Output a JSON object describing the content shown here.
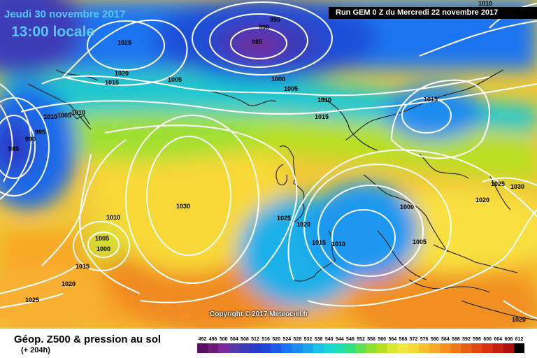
{
  "header": {
    "date_line": "Jeudi 30 novembre 2017",
    "time_line": "13:00 locale",
    "run_line": "Run GEM 0 Z du Mercredi 22 novembre 2017",
    "corner_label": "1010"
  },
  "copyright": "Copyright © 2017 Meteociel.fr",
  "footer": {
    "title": "Géop. Z500 & pression au sol",
    "subtitle": "(+ 204h)"
  },
  "legend": {
    "values": [
      "492",
      "496",
      "500",
      "504",
      "508",
      "512",
      "516",
      "520",
      "524",
      "528",
      "532",
      "536",
      "540",
      "544",
      "548",
      "552",
      "556",
      "560",
      "564",
      "568",
      "572",
      "576",
      "580",
      "584",
      "588",
      "592",
      "596",
      "600",
      "604",
      "608",
      "612"
    ],
    "colors": [
      "#5a1060",
      "#6e1a7a",
      "#7a2a9a",
      "#5a3aa8",
      "#3c3cb8",
      "#2a3ac8",
      "#1e46d8",
      "#1c5ae8",
      "#1a74f0",
      "#1a8cf0",
      "#1aa6ee",
      "#1ac0e8",
      "#1ad6d0",
      "#1ae0b0",
      "#30e080",
      "#60e050",
      "#90e030",
      "#b8e020",
      "#d8e830",
      "#f0e840",
      "#f8d838",
      "#f8c030",
      "#f8a828",
      "#f89020",
      "#f07818",
      "#e86010",
      "#e04810",
      "#d83010",
      "#c82010",
      "#b01010",
      "#000000"
    ]
  },
  "isobars": [
    {
      "value": "995",
      "kind": "low"
    },
    {
      "value": "990",
      "kind": "low"
    },
    {
      "value": "985",
      "kind": "low"
    },
    {
      "value": "1025",
      "kind": "high"
    },
    {
      "value": "1020",
      "kind": "high"
    },
    {
      "value": "1015",
      "kind": "high"
    },
    {
      "value": "1005",
      "kind": "mid"
    },
    {
      "value": "1000",
      "kind": "mid"
    },
    {
      "value": "1005",
      "kind": "mid"
    },
    {
      "value": "1010",
      "kind": "mid"
    },
    {
      "value": "1015",
      "kind": "mid"
    },
    {
      "value": "1015",
      "kind": "mid"
    },
    {
      "value": "1010",
      "kind": "mid"
    },
    {
      "value": "1005",
      "kind": "mid"
    },
    {
      "value": "1010",
      "kind": "mid"
    },
    {
      "value": "1000",
      "kind": "mid"
    },
    {
      "value": "995",
      "kind": "low"
    },
    {
      "value": "990",
      "kind": "low"
    },
    {
      "value": "985",
      "kind": "low"
    },
    {
      "value": "1030",
      "kind": "high"
    },
    {
      "value": "1025",
      "kind": "high"
    },
    {
      "value": "1020",
      "kind": "high"
    },
    {
      "value": "1010",
      "kind": "mid"
    },
    {
      "value": "1005",
      "kind": "mid"
    },
    {
      "value": "1000",
      "kind": "mid"
    },
    {
      "value": "1015",
      "kind": "mid"
    },
    {
      "value": "1020",
      "kind": "high"
    },
    {
      "value": "1025",
      "kind": "high"
    },
    {
      "value": "1015",
      "kind": "mid"
    },
    {
      "value": "1010",
      "kind": "mid"
    },
    {
      "value": "1000",
      "kind": "mid"
    },
    {
      "value": "1005",
      "kind": "mid"
    },
    {
      "value": "1025",
      "kind": "high"
    },
    {
      "value": "1030",
      "kind": "high"
    },
    {
      "value": "1020",
      "kind": "high"
    },
    {
      "value": "1020",
      "kind": "high"
    }
  ]
}
